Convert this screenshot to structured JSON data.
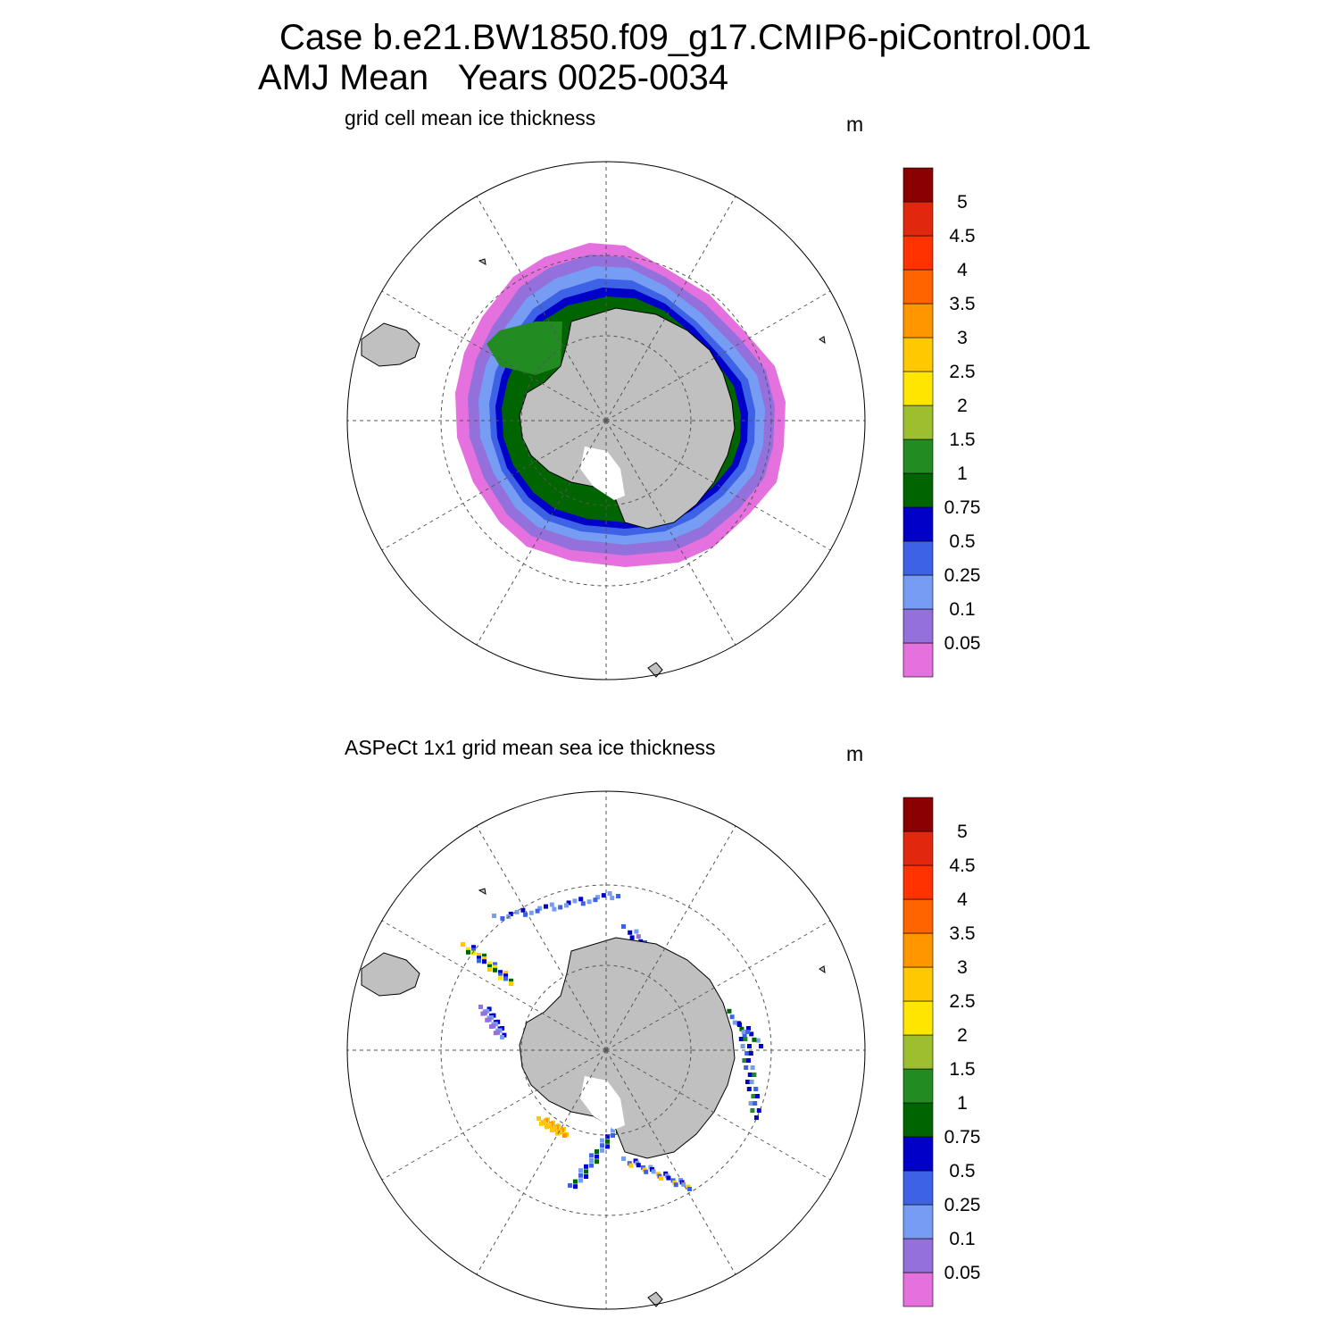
{
  "header": {
    "title_line1": "Case b.e21.BW1850.f09_g17.CMIP6-piControl.001",
    "title_line2": "AMJ Mean   Years 0025-0034"
  },
  "colormap": {
    "levels": [
      "0.05",
      "0.1",
      "0.25",
      "0.5",
      "0.75",
      "1",
      "1.5",
      "2",
      "2.5",
      "3",
      "3.5",
      "4",
      "4.5",
      "5"
    ],
    "colors": [
      "#e471de",
      "#9370db",
      "#769cf3",
      "#3d62e6",
      "#0000c8",
      "#006400",
      "#228b22",
      "#9cbe2f",
      "#ffe600",
      "#ffc800",
      "#ff9600",
      "#ff6400",
      "#ff3200",
      "#e1280f",
      "#8b0000"
    ]
  },
  "panels": [
    {
      "id": "model",
      "subtitle": "grid cell mean ice thickness",
      "unit": "m",
      "land_color": "#c0c0c0",
      "rings": [
        {
          "radius_rel": 0.0,
          "color_index": 0
        },
        {
          "radius_rel": 0.06,
          "color_index": 1
        },
        {
          "radius_rel": 0.13,
          "color_index": 2
        },
        {
          "radius_rel": 0.22,
          "color_index": 3
        },
        {
          "radius_rel": 0.3,
          "color_index": 4
        },
        {
          "radius_rel": 0.36,
          "color_index": 5
        },
        {
          "radius_rel": 0.46,
          "color_index": 6
        }
      ]
    },
    {
      "id": "aspect",
      "subtitle": "ASPeCt 1x1 grid mean sea ice thickness",
      "unit": "m",
      "land_color": "#c0c0c0"
    }
  ]
}
